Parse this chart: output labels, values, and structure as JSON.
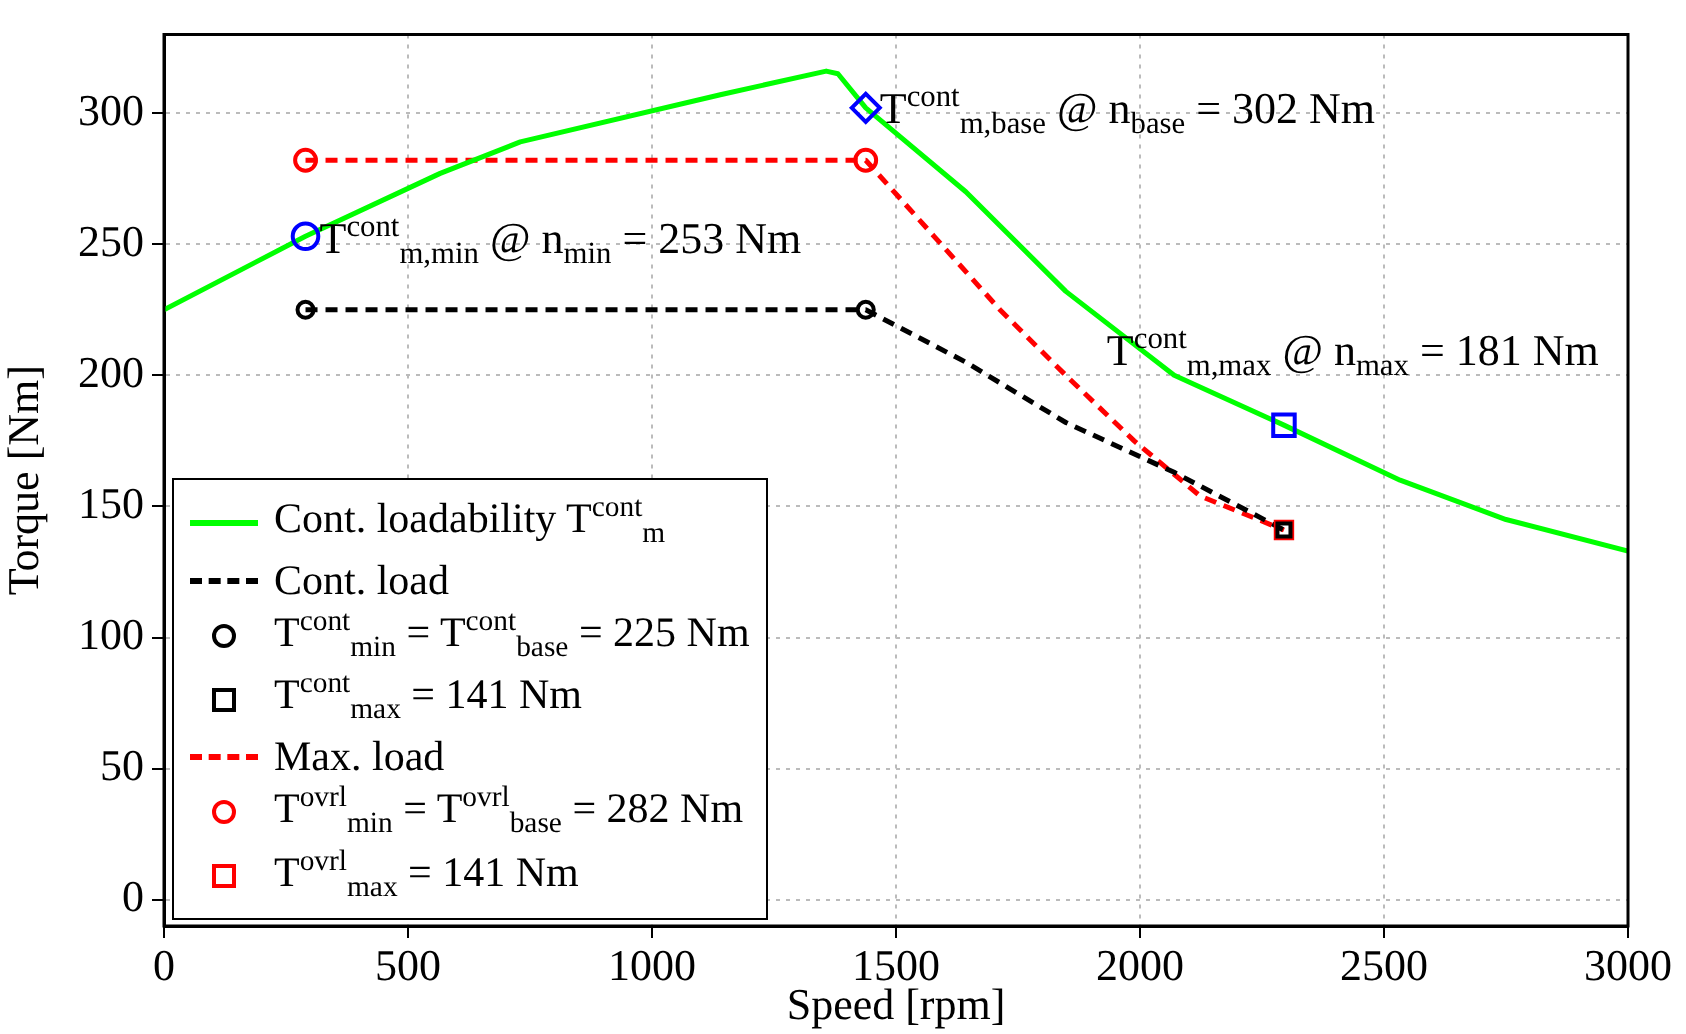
{
  "chart_data": {
    "type": "line",
    "xlabel": "Speed [rpm]",
    "ylabel": "Torque [Nm]",
    "xlim": [
      0,
      3000
    ],
    "xticks": [
      0,
      500,
      1000,
      1500,
      2000,
      2500,
      3000
    ],
    "ylim": [
      -10,
      330
    ],
    "yticks": [
      0,
      50,
      100,
      150,
      200,
      250,
      300
    ],
    "grid": true,
    "legend": "bottom left",
    "series": [
      {
        "name": "Cont. loadability T$^{cont}$$_{m}$",
        "color": "#00ff00",
        "line_style": "solid",
        "marker": "none",
        "x": [
          0,
          290,
          566,
          730,
          1140,
          1357,
          1381,
          1438,
          1643,
          1848,
          2070,
          2295,
          2533,
          2750,
          3000
        ],
        "values": [
          225,
          253,
          277,
          289,
          307,
          316,
          315,
          302,
          270,
          232,
          200,
          181,
          160,
          145,
          133
        ]
      },
      {
        "name": "Cont. load",
        "color": "#000000",
        "line_style": "dashed",
        "marker": "none",
        "x": [
          290,
          1438,
          1643,
          1848,
          2070,
          2295
        ],
        "values": [
          225,
          225,
          205,
          182,
          163,
          141
        ]
      },
      {
        "name": "T$^{cont}$$_{min}$ = T$^{cont}$$_{base}$ = 225 Nm",
        "type": "scatter",
        "color": "#000000",
        "marker": "circle",
        "x": [
          290,
          1438
        ],
        "values": [
          225,
          225
        ]
      },
      {
        "name": "T$^{cont}$$_{max}$ = 141 Nm",
        "type": "scatter",
        "color": "#000000",
        "marker": "square",
        "x": [
          2295
        ],
        "values": [
          141
        ]
      },
      {
        "name": "Max. load",
        "color": "#ff0000",
        "line_style": "dashed",
        "marker": "none",
        "x": [
          290,
          1438,
          1578,
          1713,
          1848,
          1988,
          2123,
          2295
        ],
        "values": [
          282,
          282,
          253,
          225,
          200,
          175,
          154,
          141
        ]
      },
      {
        "name": "T$^{ovrl}$$_{min}$ = T$^{ovrl}$$_{base}$ = 282 Nm",
        "type": "scatter",
        "color": "#ff0000",
        "marker": "circle",
        "x": [
          290,
          1438
        ],
        "values": [
          282,
          282
        ]
      },
      {
        "name": "T$^{ovrl}$$_{max}$ = 141 Nm",
        "type": "scatter",
        "color": "#ff0000",
        "marker": "square",
        "x": [
          2295
        ],
        "values": [
          141
        ]
      },
      {
        "type": "scatter",
        "color": "#0000ff",
        "marker": "circle",
        "x": [
          290
        ],
        "values": [
          253
        ]
      },
      {
        "type": "scatter",
        "color": "#0000ff",
        "marker": "diamond",
        "x": [
          1438
        ],
        "values": [
          302
        ]
      },
      {
        "type": "scatter",
        "color": "#0000ff",
        "marker": "square",
        "x": [
          2295
        ],
        "values": [
          181
        ]
      }
    ],
    "annotations": [
      {
        "text": "T$^{cont}$$_{m,min}$ @ n$_{min}$ = 253 Nm",
        "x": 290,
        "y": 253
      },
      {
        "text": "T$^{cont}$$_{m,base}$ @ n$_{base}$ = 302 Nm",
        "x": 1438,
        "y": 302
      },
      {
        "text": "T$^{cont}$$_{m,max}$ @ n$_{max}$ = 181 Nm",
        "x": 2295,
        "y": 181
      }
    ]
  }
}
